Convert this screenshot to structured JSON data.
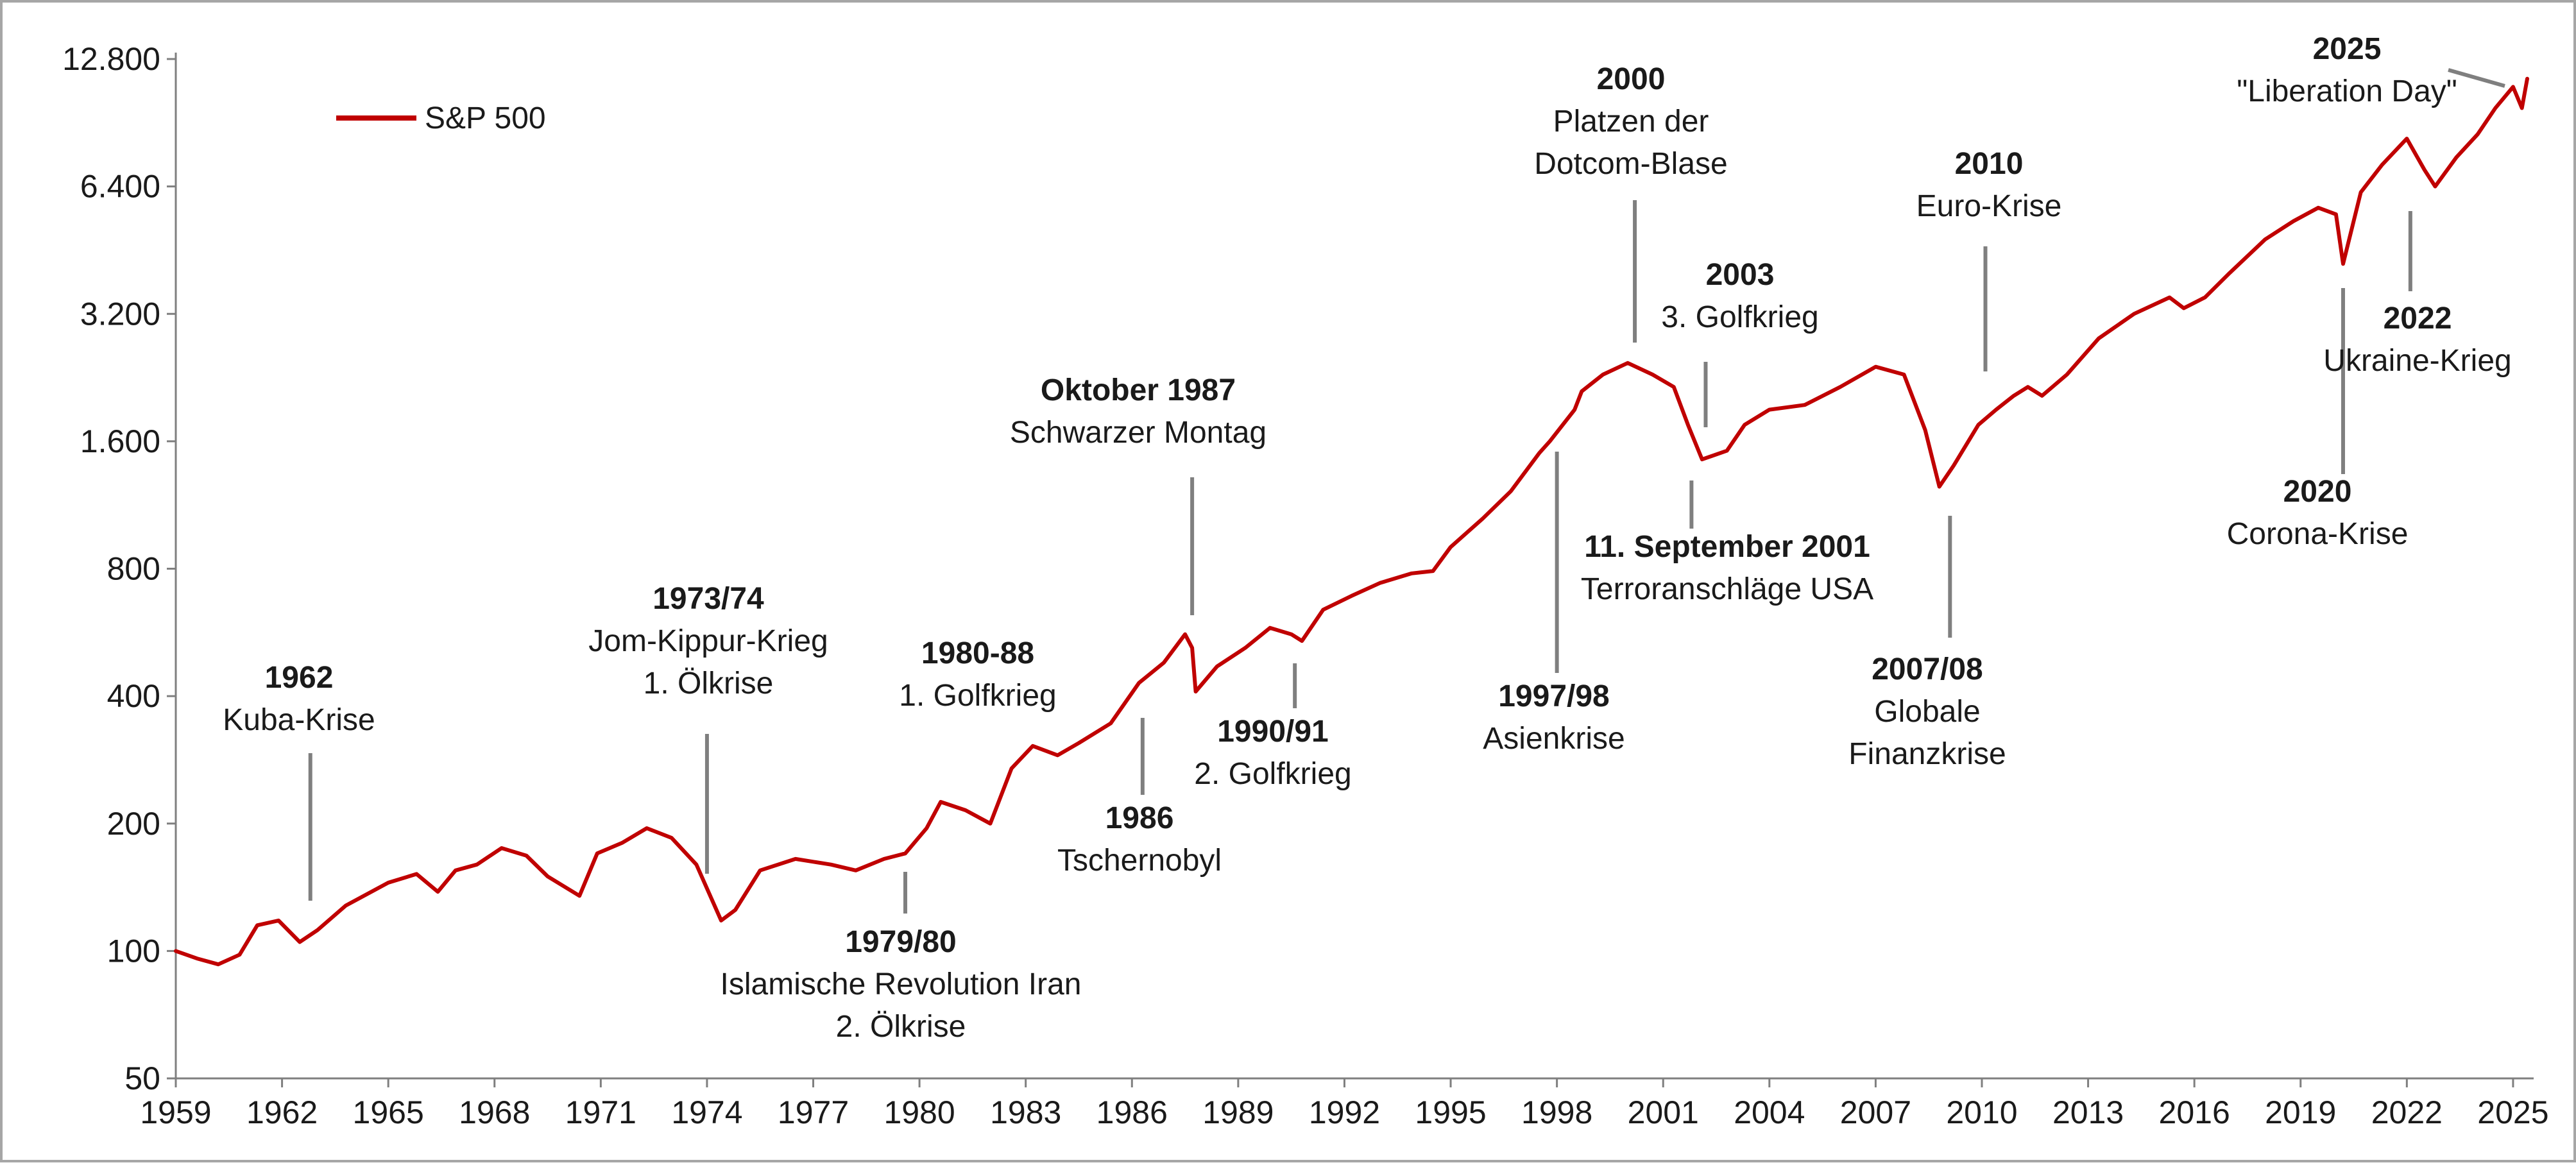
{
  "chart_data": {
    "type": "line",
    "title": "",
    "xlabel": "",
    "ylabel": "",
    "y_scale": "log2",
    "ylim": [
      50,
      12800
    ],
    "xlim": [
      1959,
      2025.4
    ],
    "y_ticks": [
      50,
      100,
      200,
      400,
      800,
      1600,
      3200,
      6400,
      12800
    ],
    "y_tick_labels": [
      "50",
      "100",
      "200",
      "400",
      "800",
      "1.600",
      "3.200",
      "6.400",
      "12.800"
    ],
    "x_ticks": [
      1959,
      1962,
      1965,
      1968,
      1971,
      1974,
      1977,
      1980,
      1983,
      1986,
      1989,
      1992,
      1995,
      1998,
      2001,
      2004,
      2007,
      2010,
      2013,
      2016,
      2019,
      2022,
      2025
    ],
    "x_tick_labels": [
      "1959",
      "1962",
      "1965",
      "1968",
      "1971",
      "1974",
      "1977",
      "1980",
      "1983",
      "1986",
      "1989",
      "1992",
      "1995",
      "1998",
      "2001",
      "2004",
      "2007",
      "2010",
      "2013",
      "2016",
      "2019",
      "2022",
      "2025"
    ],
    "grid": false,
    "legend_position": "top-left",
    "colors": {
      "series": "#c00000",
      "leader": "#7f7f7f",
      "axis": "#7f7f7f"
    },
    "series": [
      {
        "name": "S&P 500",
        "x": [
          1959,
          1959.6,
          1960.2,
          1960.8,
          1961.3,
          1961.9,
          1962.5,
          1963.0,
          1963.8,
          1965.0,
          1965.8,
          1966.4,
          1966.9,
          1967.5,
          1968.2,
          1968.9,
          1969.5,
          1970.4,
          1970.9,
          1971.6,
          1972.3,
          1973.0,
          1973.7,
          1974.4,
          1974.8,
          1975.5,
          1976.5,
          1977.5,
          1978.2,
          1979.0,
          1979.6,
          1980.2,
          1980.6,
          1981.3,
          1982.0,
          1982.6,
          1983.2,
          1983.9,
          1984.5,
          1985.4,
          1986.2,
          1986.9,
          1987.5,
          1987.7,
          1987.8,
          1988.4,
          1989.2,
          1989.9,
          1990.5,
          1990.8,
          1991.4,
          1992.2,
          1993.0,
          1993.9,
          1994.5,
          1995.0,
          1995.9,
          1996.7,
          1997.5,
          1997.8,
          1998.5,
          1998.7,
          1999.3,
          2000.0,
          2000.7,
          2001.3,
          2001.7,
          2002.1,
          2002.8,
          2003.3,
          2004.0,
          2005.0,
          2006.0,
          2007.0,
          2007.8,
          2008.4,
          2008.8,
          2009.2,
          2009.9,
          2010.4,
          2010.9,
          2011.3,
          2011.7,
          2012.4,
          2013.3,
          2014.3,
          2015.3,
          2015.7,
          2016.3,
          2017.0,
          2018.0,
          2018.8,
          2019.5,
          2020.0,
          2020.2,
          2020.7,
          2021.3,
          2022.0,
          2022.5,
          2022.8,
          2023.4,
          2024.0,
          2024.5,
          2025.0,
          2025.25,
          2025.4
        ],
        "values": [
          100,
          96,
          93,
          98,
          115,
          118,
          105,
          112,
          128,
          145,
          152,
          138,
          155,
          160,
          175,
          168,
          150,
          135,
          170,
          180,
          195,
          185,
          160,
          118,
          125,
          155,
          165,
          160,
          155,
          165,
          170,
          195,
          225,
          215,
          200,
          270,
          305,
          290,
          310,
          345,
          430,
          480,
          560,
          520,
          410,
          470,
          520,
          580,
          560,
          540,
          640,
          690,
          740,
          780,
          790,
          900,
          1050,
          1220,
          1500,
          1600,
          1900,
          2100,
          2300,
          2450,
          2300,
          2150,
          1750,
          1450,
          1520,
          1750,
          1900,
          1950,
          2150,
          2400,
          2300,
          1700,
          1250,
          1400,
          1750,
          1900,
          2050,
          2150,
          2050,
          2300,
          2800,
          3200,
          3500,
          3300,
          3500,
          4000,
          4800,
          5300,
          5700,
          5500,
          4200,
          6200,
          7200,
          8300,
          7000,
          6400,
          7500,
          8500,
          9800,
          11000,
          9800,
          11500
        ]
      }
    ],
    "annotations": [
      {
        "id": "1962",
        "bold": "1962",
        "lines": [
          "Kuba-Krise"
        ],
        "date": 1962.8
      },
      {
        "id": "1973-74",
        "bold": "1973/74",
        "lines": [
          "Jom-Kippur-Krieg",
          "1. Ölkrise"
        ],
        "date": 1974.0
      },
      {
        "id": "1979-80",
        "bold": "1979/80",
        "lines": [
          "Islamische Revolution Iran",
          "2. Ölkrise"
        ],
        "date": 1979.6
      },
      {
        "id": "1980-88",
        "bold": "1980-88",
        "lines": [
          "1. Golfkrieg"
        ],
        "date": null
      },
      {
        "id": "1986",
        "bold": "1986",
        "lines": [
          "Tschernobyl"
        ],
        "date": 1986.3
      },
      {
        "id": "oktober-1987",
        "bold": "Oktober 1987",
        "lines": [
          "Schwarzer Montag"
        ],
        "date": 1987.7
      },
      {
        "id": "1990-91",
        "bold": "1990/91",
        "lines": [
          "2. Golfkrieg"
        ],
        "date": 1990.6
      },
      {
        "id": "1997-98",
        "bold": "1997/98",
        "lines": [
          "Asienkrise"
        ],
        "date": 1998.0
      },
      {
        "id": "2000",
        "bold": "2000",
        "lines": [
          "Platzen der",
          "Dotcom-Blase"
        ],
        "date": 2000.2
      },
      {
        "id": "11-september-2001",
        "bold": "11. September 2001",
        "lines": [
          "Terroranschläge USA"
        ],
        "date": 2001.8
      },
      {
        "id": "2003",
        "bold": "2003",
        "lines": [
          "3. Golfkrieg"
        ],
        "date": 2002.2
      },
      {
        "id": "2007-08",
        "bold": "2007/08",
        "lines": [
          "Globale",
          "Finanzkrise"
        ],
        "date": 2009.1
      },
      {
        "id": "2010",
        "bold": "2010",
        "lines": [
          "Euro-Krise"
        ],
        "date": 2010.1
      },
      {
        "id": "2020",
        "bold": "2020",
        "lines": [
          "Corona-Krise"
        ],
        "date": 2020.2
      },
      {
        "id": "2022",
        "bold": "2022",
        "lines": [
          "Ukraine-Krieg"
        ],
        "date": 2022.1
      },
      {
        "id": "2025",
        "bold": "2025",
        "lines": [
          "\"Liberation Day\""
        ],
        "date": 2025.25
      }
    ]
  }
}
